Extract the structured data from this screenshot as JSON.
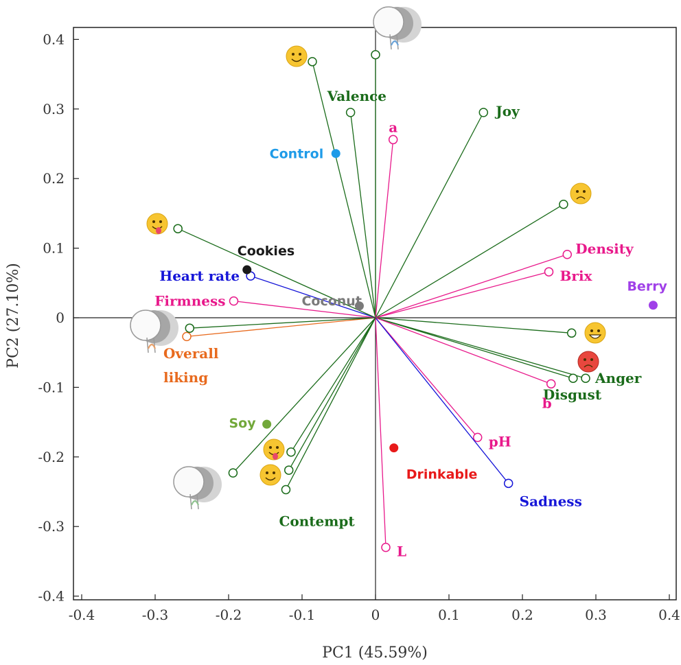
{
  "chart_data": {
    "type": "scatter",
    "subtype": "pca-biplot",
    "title": "",
    "xlabel": "PC1 (45.59%)",
    "ylabel": "PC2 (27.10%)",
    "xlim": [
      -0.41,
      0.41
    ],
    "ylim": [
      -0.41,
      0.41
    ],
    "xticks": [
      "-0.4",
      "-0.3",
      "-0.2",
      "-0.1",
      "0",
      "0.1",
      "0.2",
      "0.3",
      "0.4"
    ],
    "yticks": [
      "0.4",
      "0.3",
      "0.2",
      "0.1",
      "0",
      "-0.1",
      "-0.2",
      "-0.3",
      "-0.4"
    ],
    "grid": false,
    "origin_lines": true,
    "vectors": [
      {
        "name": "Valence",
        "x": -0.034,
        "y": 0.295,
        "color": "#1a6b1a"
      },
      {
        "name": "",
        "x": -0.086,
        "y": 0.368,
        "color": "#1a6b1a"
      },
      {
        "name": "",
        "x": 0.0,
        "y": 0.378,
        "color": "#1a6b1a"
      },
      {
        "name": "Joy",
        "x": 0.147,
        "y": 0.295,
        "color": "#1a6b1a"
      },
      {
        "name": "a",
        "x": 0.024,
        "y": 0.256,
        "color": "#e8198b"
      },
      {
        "name": "",
        "x": 0.256,
        "y": 0.163,
        "color": "#1a6b1a"
      },
      {
        "name": "Density",
        "x": 0.261,
        "y": 0.091,
        "color": "#e8198b"
      },
      {
        "name": "Brix",
        "x": 0.236,
        "y": 0.066,
        "color": "#e8198b"
      },
      {
        "name": "",
        "x": 0.267,
        "y": -0.022,
        "color": "#1a6b1a"
      },
      {
        "name": "Anger",
        "x": 0.286,
        "y": -0.087,
        "color": "#1a6b1a"
      },
      {
        "name": "Disgust",
        "x": 0.269,
        "y": -0.087,
        "color": "#1a6b1a"
      },
      {
        "name": "b",
        "x": 0.239,
        "y": -0.095,
        "color": "#e8198b"
      },
      {
        "name": "pH",
        "x": 0.139,
        "y": -0.172,
        "color": "#e8198b"
      },
      {
        "name": "Sadness",
        "x": 0.181,
        "y": -0.238,
        "color": "#1515d8"
      },
      {
        "name": "L",
        "x": 0.014,
        "y": -0.33,
        "color": "#e8198b"
      },
      {
        "name": "Contempt",
        "x": -0.122,
        "y": -0.247,
        "color": "#1a6b1a"
      },
      {
        "name": "",
        "x": -0.118,
        "y": -0.219,
        "color": "#1a6b1a"
      },
      {
        "name": "",
        "x": -0.115,
        "y": -0.193,
        "color": "#1a6b1a"
      },
      {
        "name": "",
        "x": -0.194,
        "y": -0.223,
        "color": "#1a6b1a"
      },
      {
        "name": "Overall liking",
        "x": -0.257,
        "y": -0.027,
        "color": "#e86a1e"
      },
      {
        "name": "",
        "x": -0.253,
        "y": -0.015,
        "color": "#1a6b1a"
      },
      {
        "name": "Firmness",
        "x": -0.193,
        "y": 0.024,
        "color": "#e8198b"
      },
      {
        "name": "Heart rate",
        "x": -0.17,
        "y": 0.06,
        "color": "#1515d8"
      },
      {
        "name": "",
        "x": -0.269,
        "y": 0.128,
        "color": "#1a6b1a"
      }
    ],
    "samples": [
      {
        "name": "Control",
        "x": -0.054,
        "y": 0.236,
        "color": "#1e9be8"
      },
      {
        "name": "Cookies",
        "x": -0.175,
        "y": 0.069,
        "color": "#1a1a1a"
      },
      {
        "name": "Coconut",
        "x": -0.022,
        "y": 0.017,
        "color": "#7a7a7a"
      },
      {
        "name": "Berry",
        "x": 0.378,
        "y": 0.018,
        "color": "#a040e8"
      },
      {
        "name": "Soy",
        "x": -0.148,
        "y": -0.153,
        "color": "#72a83a"
      },
      {
        "name": "Drinkable",
        "x": 0.025,
        "y": -0.187,
        "color": "#e81a1a"
      }
    ],
    "emoji_markers": [
      {
        "name": "happy-emoji",
        "glyph": "🙂"
      },
      {
        "name": "sad-emoji",
        "glyph": "😞"
      },
      {
        "name": "tongue-emoji",
        "glyph": "😛"
      },
      {
        "name": "grin-emoji",
        "glyph": "😀"
      },
      {
        "name": "angry-emoji",
        "glyph": "😡"
      },
      {
        "name": "wink-tongue-emoji",
        "glyph": "😜"
      },
      {
        "name": "smirk-emoji",
        "glyph": "😏"
      }
    ],
    "head_icons": [
      "head-icon-top",
      "head-icon-left",
      "head-icon-bottom-left"
    ]
  }
}
